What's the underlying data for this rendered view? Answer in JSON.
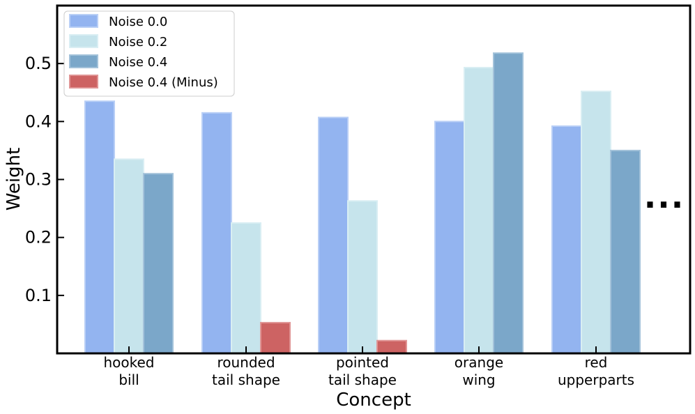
{
  "chart_data": {
    "type": "bar",
    "categories": [
      [
        "hooked",
        "bill"
      ],
      [
        "rounded",
        "tail shape"
      ],
      [
        "pointed",
        "tail shape"
      ],
      [
        "orange",
        "wing"
      ],
      [
        "red",
        "upperparts"
      ]
    ],
    "series": [
      {
        "name": "Noise 0.0",
        "color": "#93b4f0",
        "edge": "#b9cff6",
        "values": [
          0.435,
          0.415,
          0.407,
          0.4,
          0.392
        ]
      },
      {
        "name": "Noise 0.2",
        "color": "#c6e4ec",
        "edge": "#d9eef3",
        "values": [
          0.335,
          0.225,
          0.263,
          0.493,
          0.452
        ]
      },
      {
        "name": "Noise 0.4",
        "color": "#7ba7c9",
        "edge": "#a3c2da",
        "values": [
          0.31,
          null,
          null,
          0.518,
          0.35
        ]
      },
      {
        "name": "Noise 0.4 (Minus)",
        "color": "#cd6363",
        "edge": "#e09494",
        "values": [
          null,
          0.053,
          0.022,
          null,
          null
        ]
      }
    ],
    "xlabel": "Concept",
    "ylabel": "Weight",
    "yticks": [
      0.1,
      0.2,
      0.3,
      0.4,
      0.5
    ],
    "ylim": [
      0,
      0.6
    ],
    "grid": false,
    "legend_position": "top-left",
    "continuation_marker": "..."
  }
}
